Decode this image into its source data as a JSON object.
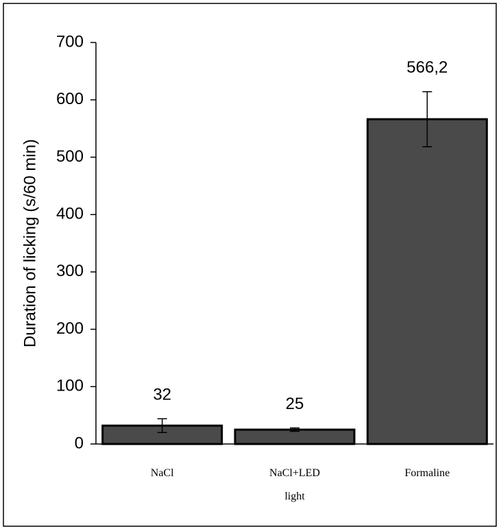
{
  "chart_data": {
    "type": "bar",
    "y_label": "Duration of licking (s/60 min)",
    "categories": [
      "NaCl",
      "NaCl+LED light",
      "Formaline"
    ],
    "values": [
      32,
      25,
      566.2
    ],
    "value_labels": [
      "32",
      "25",
      "566,2"
    ],
    "errors": [
      12,
      3,
      48
    ],
    "color": "#4a4a4a",
    "ylim": [
      0,
      700
    ],
    "yticks": [
      0,
      100,
      200,
      300,
      400,
      500,
      600,
      700
    ],
    "grid": false
  }
}
